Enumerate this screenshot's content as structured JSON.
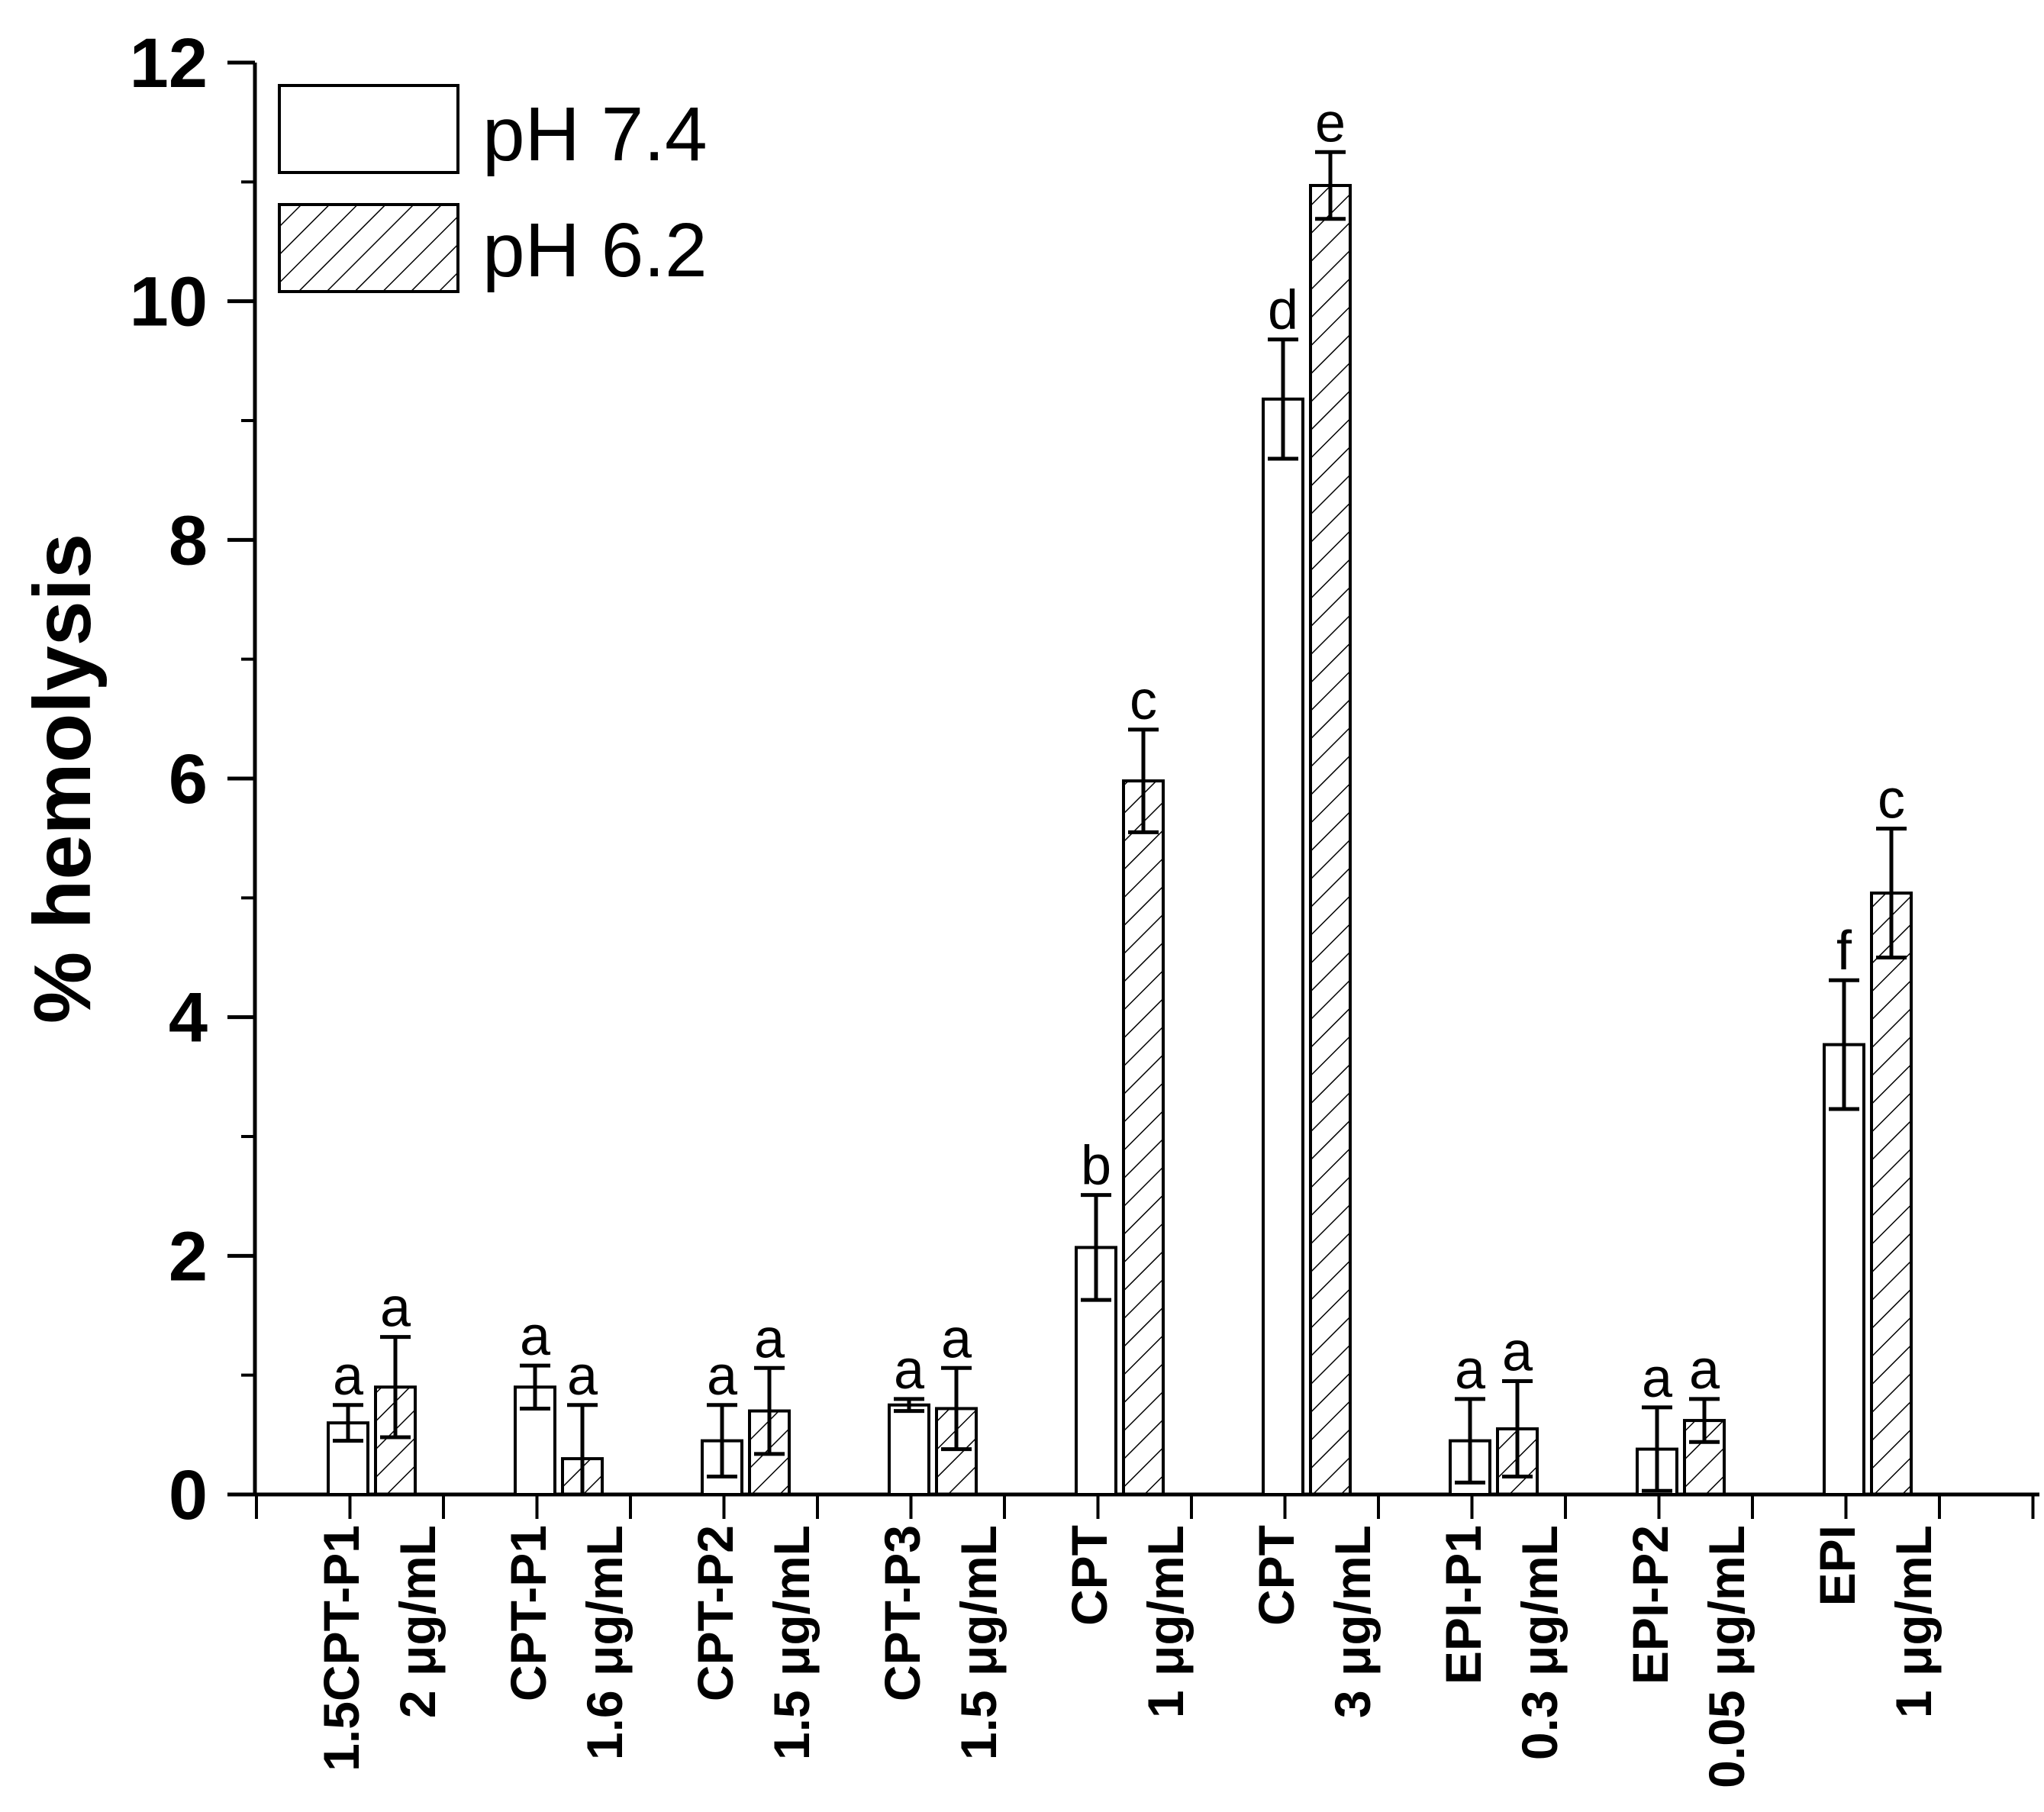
{
  "chart_data": {
    "type": "bar",
    "ylabel": "% hemolysis",
    "xlabel": "",
    "ylim": [
      0,
      12
    ],
    "yticks": [
      0,
      2,
      4,
      6,
      8,
      10,
      12
    ],
    "ytick_labels": [
      "0",
      "2",
      "4",
      "6",
      "8",
      "10",
      "12"
    ],
    "grid": false,
    "legend_position": "top-left",
    "groups": [
      {
        "name": "1.5CPT-P1",
        "conc": "2 μg/mL"
      },
      {
        "name": "CPT-P1",
        "conc": "1.6 μg/mL"
      },
      {
        "name": "CPT-P2",
        "conc": "1.5 μg/mL"
      },
      {
        "name": "CPT-P3",
        "conc": "1.5 μg/mL"
      },
      {
        "name": "CPT",
        "conc": "1 μg/mL"
      },
      {
        "name": "CPT",
        "conc": "3 μg/mL"
      },
      {
        "name": "EPI-P1",
        "conc": "0.3 μg/mL"
      },
      {
        "name": "EPI-P2",
        "conc": "0.05 μg/mL"
      },
      {
        "name": "EPI",
        "conc": "1 μg/mL"
      }
    ],
    "series": [
      {
        "name": "pH 7.4",
        "pattern": "open",
        "values": [
          0.6,
          0.9,
          0.45,
          0.75,
          2.07,
          9.18,
          0.45,
          0.38,
          3.77
        ],
        "errors": [
          0.15,
          0.18,
          0.3,
          0.05,
          0.44,
          0.5,
          0.35,
          0.35,
          0.54
        ],
        "letters": [
          "a",
          "a",
          "a",
          "a",
          "b",
          "d",
          "a",
          "a",
          "f"
        ]
      },
      {
        "name": "pH 6.2",
        "pattern": "hatched",
        "values": [
          0.9,
          0.3,
          0.7,
          0.72,
          5.98,
          10.97,
          0.55,
          0.62,
          5.04
        ],
        "errors": [
          0.42,
          0.45,
          0.36,
          0.34,
          0.43,
          0.28,
          0.4,
          0.18,
          0.54
        ],
        "letters": [
          "a",
          "a",
          "a",
          "a",
          "c",
          "e",
          "a",
          "a",
          "c"
        ]
      }
    ],
    "colors": {
      "bar_fill": "#ffffff",
      "bar_stroke": "#000000",
      "hatch": "#000000"
    }
  }
}
